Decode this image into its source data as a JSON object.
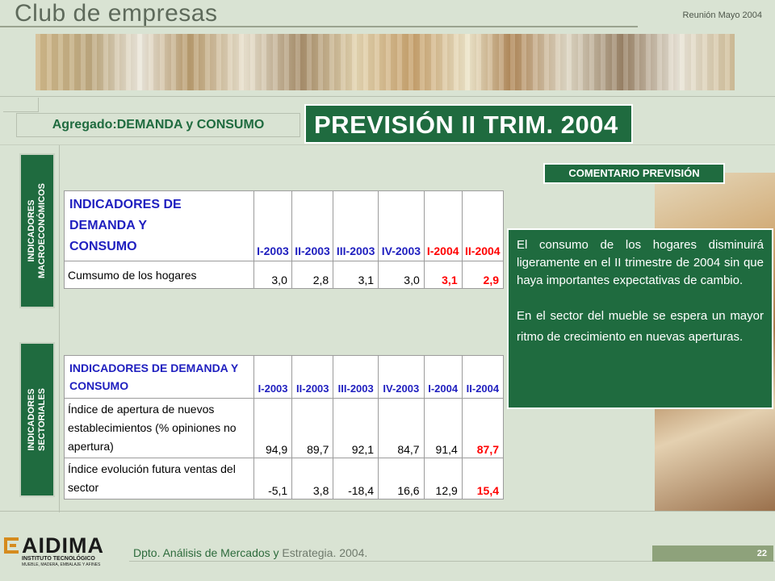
{
  "header": {
    "brand": "Club de empresas",
    "meeting": "Reunión Mayo 2004"
  },
  "section": {
    "tab_label": "Agregado:DEMANDA y CONSUMO",
    "title": "PREVISIÓN II TRIM. 2004"
  },
  "side_labels": {
    "macro": "INDICADORES\nMACROECONÓMICOS",
    "sector": "INDICADORES\nSECTORIALES"
  },
  "table_macro": {
    "title_line1": "INDICADORES DE DEMANDA Y",
    "title_line2": "CONSUMO",
    "columns": [
      "I-2003",
      "II-2003",
      "III-2003",
      "IV-2003",
      "I-2004",
      "II-2004"
    ],
    "rows": [
      {
        "label": "Cumsumo de los hogares",
        "values": [
          "3,0",
          "2,8",
          "3,1",
          "3,0",
          "3,1",
          "2,9"
        ]
      }
    ]
  },
  "table_sector": {
    "title_line1": "INDICADORES DE DEMANDA Y",
    "title_line2": "CONSUMO",
    "columns": [
      "I-2003",
      "II-2003",
      "III-2003",
      "IV-2003",
      "I-2004",
      "II-2004"
    ],
    "rows": [
      {
        "label_lines": [
          "Índice de apertura de nuevos",
          "establecimientos (% opiniones no",
          "apertura)"
        ],
        "values": [
          "94,9",
          "89,7",
          "92,1",
          "84,7",
          "91,4",
          "87,7"
        ]
      },
      {
        "label_lines": [
          "Índice evolución futura ventas del",
          "sector"
        ],
        "values": [
          "-5,1",
          "3,8",
          "-18,4",
          "16,6",
          "12,9",
          "15,4"
        ]
      }
    ]
  },
  "comment": {
    "tab_label": "COMENTARIO PREVISIÓN",
    "paragraph1": "El consumo de los hogares disminuirá ligeramente en el II trimestre de 2004 sin que haya importantes expectativas de cambio.",
    "paragraph2": "En el sector del mueble se espera un mayor ritmo de crecimiento en nuevas aperturas."
  },
  "footer": {
    "logo_name": "AIDIMA",
    "logo_sub1": "INSTITUTO TECNOLÓGICO",
    "logo_sub2": "MUEBLE, MADERA, EMBALAJE Y AFINES",
    "dept_main": "Dpto. Análisis de Mercados y",
    "dept_gray": "Estrategia. 2004.",
    "page_number": "22"
  },
  "colors": {
    "accent_green": "#1f6b3f",
    "background": "#d9e3d3",
    "table_header_blue": "#1f1fbf",
    "highlight_red": "#ff0000"
  }
}
